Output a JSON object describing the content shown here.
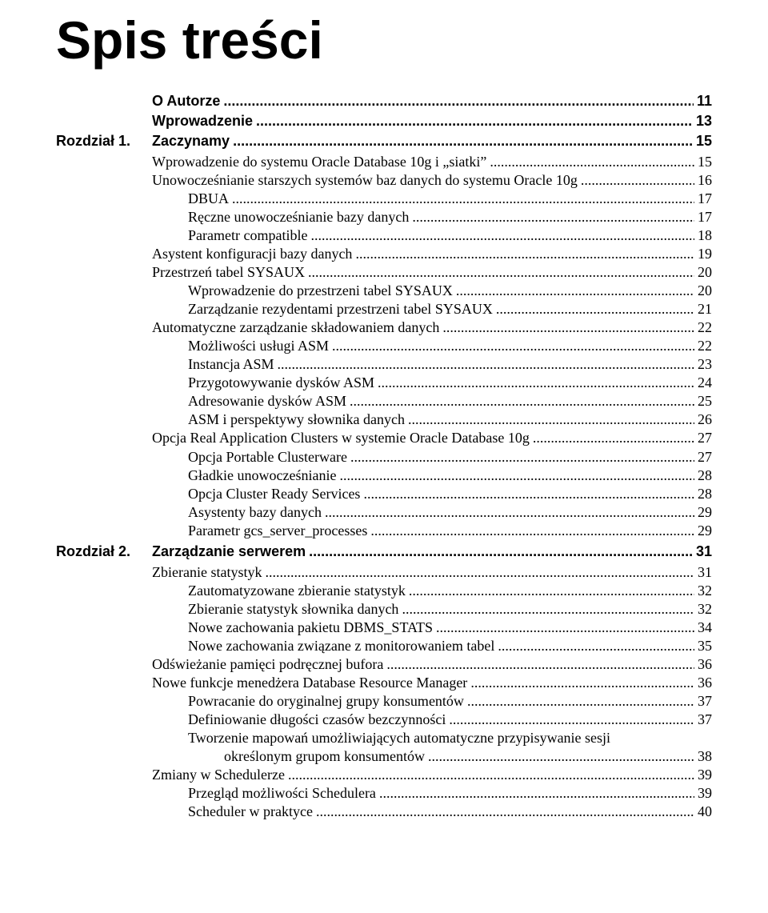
{
  "main_title": "Spis treści",
  "top_entries": [
    {
      "title": "O Autorze",
      "page": "11",
      "style": "bold-sans"
    },
    {
      "title": "Wprowadzenie",
      "page": "13",
      "style": "bold-sans"
    }
  ],
  "chapters": [
    {
      "label": "Rozdział 1.",
      "title": "Zaczynamy",
      "page": "15",
      "entries": [
        {
          "indent": 0,
          "title": "Wprowadzenie do systemu Oracle Database 10g i „siatki”",
          "page": "15"
        },
        {
          "indent": 0,
          "title": "Unowocześnianie starszych systemów baz danych do systemu Oracle 10g",
          "page": "16"
        },
        {
          "indent": 1,
          "title": "DBUA",
          "page": "17"
        },
        {
          "indent": 1,
          "title": "Ręczne unowocześnianie bazy danych",
          "page": "17"
        },
        {
          "indent": 1,
          "title": "Parametr compatible",
          "page": "18"
        },
        {
          "indent": 0,
          "title": "Asystent konfiguracji bazy danych",
          "page": "19"
        },
        {
          "indent": 0,
          "title": "Przestrzeń tabel SYSAUX",
          "page": "20"
        },
        {
          "indent": 1,
          "title": "Wprowadzenie do przestrzeni tabel SYSAUX",
          "page": "20"
        },
        {
          "indent": 1,
          "title": "Zarządzanie rezydentami przestrzeni tabel SYSAUX",
          "page": "21"
        },
        {
          "indent": 0,
          "title": "Automatyczne zarządzanie składowaniem danych",
          "page": "22"
        },
        {
          "indent": 1,
          "title": "Możliwości usługi ASM",
          "page": "22"
        },
        {
          "indent": 1,
          "title": "Instancja ASM",
          "page": "23"
        },
        {
          "indent": 1,
          "title": "Przygotowywanie dysków ASM",
          "page": "24"
        },
        {
          "indent": 1,
          "title": "Adresowanie dysków ASM",
          "page": "25"
        },
        {
          "indent": 1,
          "title": "ASM i perspektywy słownika danych",
          "page": "26"
        },
        {
          "indent": 0,
          "title": "Opcja Real Application Clusters w systemie Oracle Database 10g",
          "page": "27"
        },
        {
          "indent": 1,
          "title": "Opcja Portable Clusterware",
          "page": "27"
        },
        {
          "indent": 1,
          "title": "Gładkie unowocześnianie",
          "page": "28"
        },
        {
          "indent": 1,
          "title": "Opcja Cluster Ready Services",
          "page": "28"
        },
        {
          "indent": 1,
          "title": "Asystenty bazy danych",
          "page": "29"
        },
        {
          "indent": 1,
          "title": "Parametr gcs_server_processes",
          "page": "29"
        }
      ]
    },
    {
      "label": "Rozdział 2.",
      "title": "Zarządzanie serwerem",
      "page": "31",
      "entries": [
        {
          "indent": 0,
          "title": "Zbieranie statystyk",
          "page": "31"
        },
        {
          "indent": 1,
          "title": "Zautomatyzowane zbieranie statystyk",
          "page": "32"
        },
        {
          "indent": 1,
          "title": "Zbieranie statystyk słownika danych",
          "page": "32"
        },
        {
          "indent": 1,
          "title": "Nowe zachowania pakietu DBMS_STATS",
          "page": "34"
        },
        {
          "indent": 1,
          "title": "Nowe zachowania związane z monitorowaniem tabel",
          "page": "35"
        },
        {
          "indent": 0,
          "title": "Odświeżanie pamięci podręcznej bufora",
          "page": "36"
        },
        {
          "indent": 0,
          "title": "Nowe funkcje menedżera Database Resource Manager",
          "page": "36"
        },
        {
          "indent": 1,
          "title": "Powracanie do oryginalnej grupy konsumentów",
          "page": "37"
        },
        {
          "indent": 1,
          "title": "Definiowanie długości czasów bezczynności",
          "page": "37"
        },
        {
          "indent": 1,
          "title": "Tworzenie mapowań umożliwiających automatyczne przypisywanie sesji",
          "page": ""
        },
        {
          "indent": 2,
          "title": "określonym grupom konsumentów",
          "page": "38"
        },
        {
          "indent": 0,
          "title": "Zmiany w Schedulerze",
          "page": "39"
        },
        {
          "indent": 1,
          "title": "Przegląd możliwości Schedulera",
          "page": "39"
        },
        {
          "indent": 1,
          "title": "Scheduler w praktyce",
          "page": "40"
        }
      ]
    }
  ]
}
